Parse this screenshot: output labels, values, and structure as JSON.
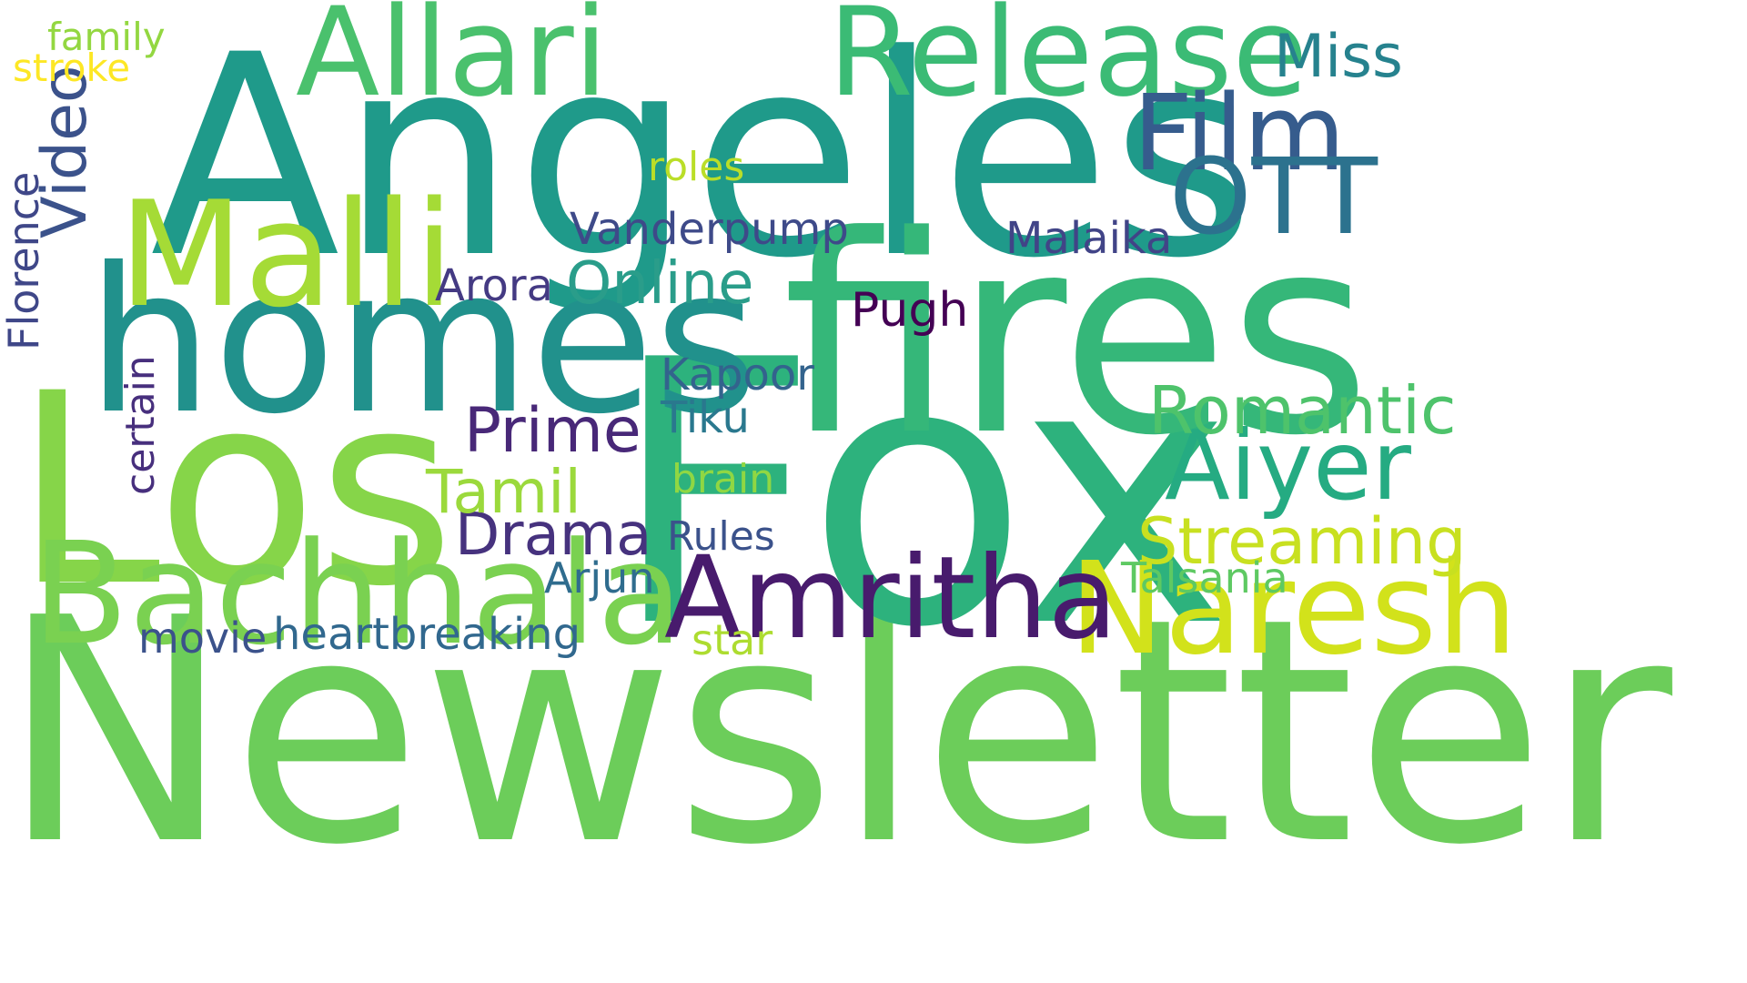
{
  "words": [
    {
      "text": "Newsletter",
      "color": "#6ccd5a"
    },
    {
      "text": "Fox",
      "color": "#2db27d"
    },
    {
      "text": "Angeles",
      "color": "#1f9a8a"
    },
    {
      "text": "fires",
      "color": "#35b779"
    },
    {
      "text": "Los",
      "color": "#86d549"
    },
    {
      "text": "homes",
      "color": "#21918c"
    },
    {
      "text": "Malli",
      "color": "#a5db36"
    },
    {
      "text": "Bachhala",
      "color": "#7ad151"
    },
    {
      "text": "Allari",
      "color": "#4ac16d"
    },
    {
      "text": "Release",
      "color": "#3bbb75"
    },
    {
      "text": "Naresh",
      "color": "#d2e21b"
    },
    {
      "text": "Amritha",
      "color": "#481b6d"
    },
    {
      "text": "Film",
      "color": "#365c8d"
    },
    {
      "text": "OTT",
      "color": "#2c728e"
    },
    {
      "text": "Aiyer",
      "color": "#25ab82"
    },
    {
      "text": "Romantic",
      "color": "#4ec36b"
    },
    {
      "text": "Streaming",
      "color": "#c8e020"
    },
    {
      "text": "Miss",
      "color": "#26828e"
    },
    {
      "text": "Prime",
      "color": "#482878"
    },
    {
      "text": "Drama",
      "color": "#46327e"
    },
    {
      "text": "Online",
      "color": "#2a9d8a"
    },
    {
      "text": "Tamil",
      "color": "#9bd93c"
    },
    {
      "text": "Vanderpump",
      "color": "#3e4a89"
    },
    {
      "text": "Malaika",
      "color": "#414487"
    },
    {
      "text": "Video",
      "color": "#3b528b"
    },
    {
      "text": "Florence",
      "color": "#3f4788"
    },
    {
      "text": "certain",
      "color": "#472f7d"
    },
    {
      "text": "Arora",
      "color": "#443a83"
    },
    {
      "text": "Pugh",
      "color": "#440154"
    },
    {
      "text": "Kapoor",
      "color": "#33638d"
    },
    {
      "text": "Tiku",
      "color": "#2a788e"
    },
    {
      "text": "brain",
      "color": "#90d743"
    },
    {
      "text": "Rules",
      "color": "#3b528b"
    },
    {
      "text": "Arjun",
      "color": "#2f6c8e"
    },
    {
      "text": "Talsania",
      "color": "#5ec962"
    },
    {
      "text": "star",
      "color": "#addc30"
    },
    {
      "text": "heartbreaking",
      "color": "#31688e"
    },
    {
      "text": "movie",
      "color": "#3b528b"
    },
    {
      "text": "roles",
      "color": "#bade28"
    },
    {
      "text": "family",
      "color": "#93d741"
    },
    {
      "text": "stroke",
      "color": "#fde725"
    }
  ]
}
